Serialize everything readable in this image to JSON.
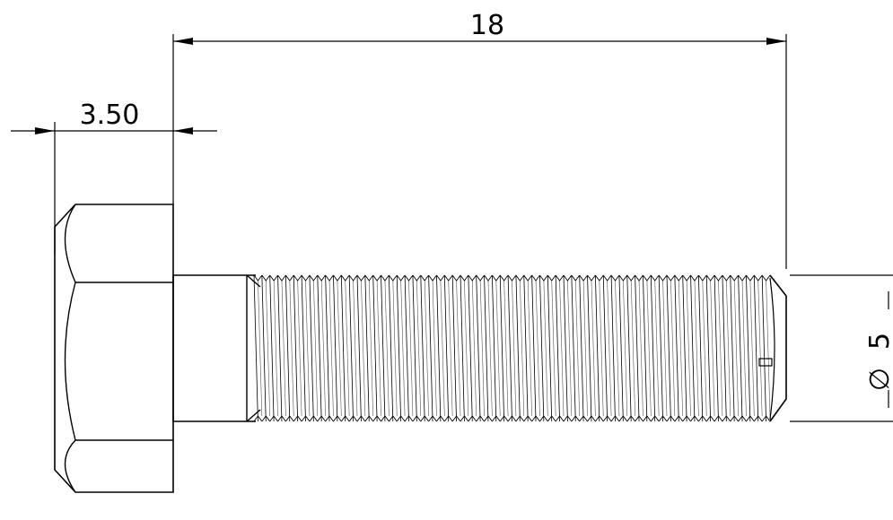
{
  "drawing": {
    "dimensions": {
      "overall_length": "18",
      "head_height": "3.50",
      "diameter_symbol": "∅",
      "diameter_value": "5"
    },
    "thread": {
      "crest_count": 65
    }
  }
}
